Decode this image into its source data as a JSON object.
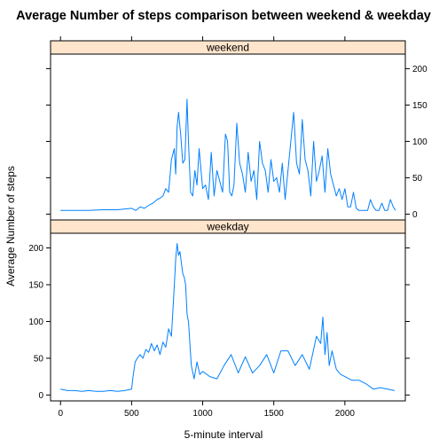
{
  "chart_data": {
    "type": "line",
    "title": "Average Number of steps comparison between weekend & weekday",
    "xlabel": "5-minute interval",
    "ylabel": "Average Number of steps",
    "xlim": [
      -70,
      2425
    ],
    "ylim": [
      -8,
      220
    ],
    "x_ticks": [
      0,
      500,
      1000,
      1500,
      2000
    ],
    "y_ticks": [
      0,
      50,
      100,
      150,
      200
    ],
    "grid": false,
    "line_color": "#0080ff",
    "strip_color": "#ffe5cc",
    "panels": [
      {
        "name": "weekend",
        "y_axis_side": "right",
        "x": [
          0,
          100,
          200,
          300,
          400,
          500,
          530,
          560,
          590,
          620,
          650,
          680,
          700,
          720,
          740,
          760,
          780,
          800,
          810,
          820,
          830,
          845,
          860,
          875,
          890,
          900,
          915,
          930,
          945,
          960,
          975,
          1000,
          1020,
          1040,
          1060,
          1080,
          1100,
          1120,
          1140,
          1160,
          1175,
          1190,
          1205,
          1220,
          1240,
          1260,
          1280,
          1300,
          1320,
          1340,
          1360,
          1380,
          1400,
          1420,
          1440,
          1460,
          1480,
          1500,
          1520,
          1540,
          1560,
          1580,
          1600,
          1620,
          1640,
          1660,
          1680,
          1700,
          1720,
          1740,
          1760,
          1780,
          1800,
          1820,
          1840,
          1860,
          1880,
          1900,
          1920,
          1940,
          1960,
          1980,
          2000,
          2020,
          2040,
          2060,
          2080,
          2100,
          2120,
          2140,
          2160,
          2180,
          2200,
          2220,
          2240,
          2260,
          2280,
          2300,
          2320,
          2340,
          2355
        ],
        "y": [
          5,
          5,
          5,
          6,
          6,
          8,
          5,
          10,
          8,
          12,
          15,
          20,
          22,
          25,
          35,
          30,
          75,
          90,
          55,
          120,
          140,
          110,
          70,
          75,
          158,
          100,
          30,
          25,
          60,
          40,
          90,
          35,
          40,
          20,
          85,
          25,
          60,
          45,
          30,
          110,
          100,
          30,
          25,
          40,
          125,
          70,
          55,
          30,
          85,
          45,
          60,
          20,
          100,
          70,
          60,
          30,
          75,
          45,
          50,
          30,
          70,
          20,
          60,
          100,
          140,
          70,
          55,
          130,
          75,
          60,
          25,
          100,
          45,
          60,
          80,
          30,
          90,
          55,
          40,
          25,
          35,
          20,
          35,
          10,
          10,
          30,
          8,
          5,
          5,
          5,
          5,
          20,
          10,
          5,
          5,
          15,
          5,
          5,
          20,
          10,
          5
        ]
      },
      {
        "name": "weekday",
        "y_axis_side": "left",
        "x": [
          0,
          50,
          100,
          150,
          200,
          250,
          300,
          350,
          400,
          450,
          500,
          510,
          525,
          540,
          560,
          580,
          600,
          620,
          640,
          660,
          680,
          700,
          720,
          740,
          760,
          780,
          800,
          810,
          820,
          830,
          840,
          850,
          860,
          870,
          880,
          890,
          900,
          920,
          940,
          960,
          980,
          1000,
          1050,
          1100,
          1150,
          1200,
          1250,
          1300,
          1350,
          1400,
          1450,
          1500,
          1550,
          1600,
          1650,
          1700,
          1750,
          1800,
          1830,
          1845,
          1860,
          1875,
          1890,
          1910,
          1940,
          1970,
          2000,
          2050,
          2100,
          2150,
          2200,
          2250,
          2300,
          2350
        ],
        "y": [
          8,
          6,
          6,
          5,
          6,
          5,
          5,
          6,
          5,
          6,
          8,
          25,
          45,
          50,
          55,
          50,
          62,
          58,
          70,
          60,
          68,
          55,
          72,
          65,
          90,
          80,
          148,
          185,
          206,
          190,
          195,
          180,
          165,
          160,
          150,
          110,
          100,
          40,
          22,
          45,
          28,
          32,
          25,
          22,
          40,
          55,
          30,
          52,
          30,
          40,
          55,
          30,
          60,
          60,
          40,
          55,
          35,
          80,
          70,
          106,
          55,
          85,
          40,
          60,
          35,
          28,
          25,
          20,
          20,
          15,
          8,
          10,
          8,
          6
        ]
      }
    ]
  }
}
